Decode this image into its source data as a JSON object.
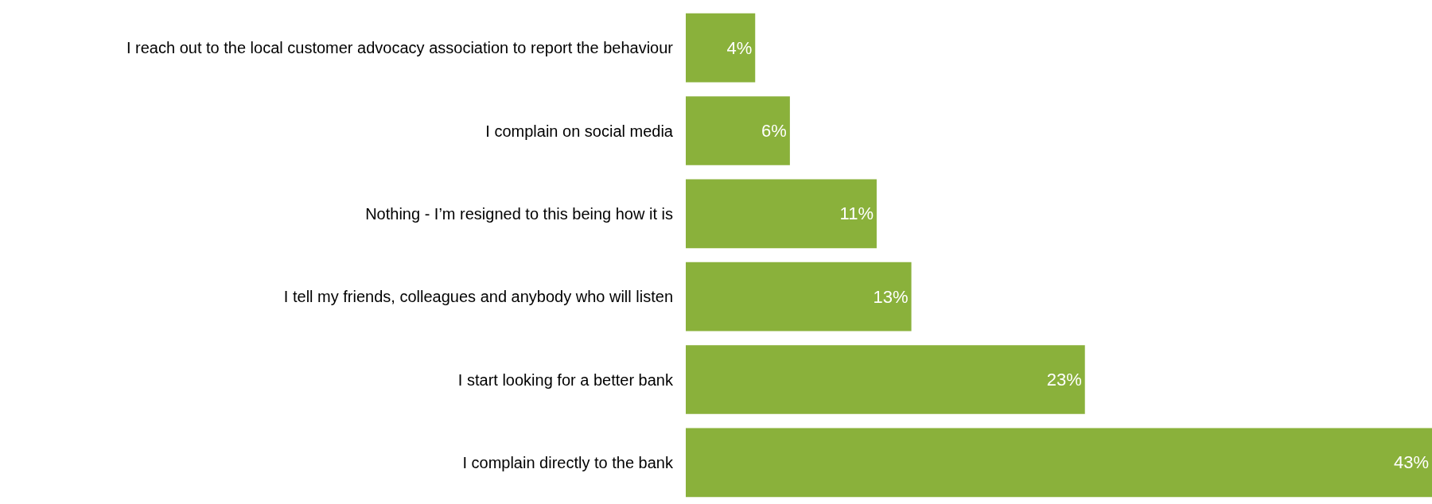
{
  "chart_data": {
    "type": "bar",
    "orientation": "horizontal",
    "categories": [
      "I reach out to the local customer advocacy association to report the behaviour",
      "I complain on social media",
      "Nothing - I’m resigned to this being how it is",
      "I tell my friends, colleagues and anybody who will listen",
      "I start looking for a better bank",
      "I complain directly to the bank"
    ],
    "values": [
      4,
      6,
      11,
      13,
      23,
      43
    ],
    "value_labels": [
      "4%",
      "6%",
      "11%",
      "13%",
      "23%",
      "43%"
    ],
    "color": "#8ab13b"
  }
}
